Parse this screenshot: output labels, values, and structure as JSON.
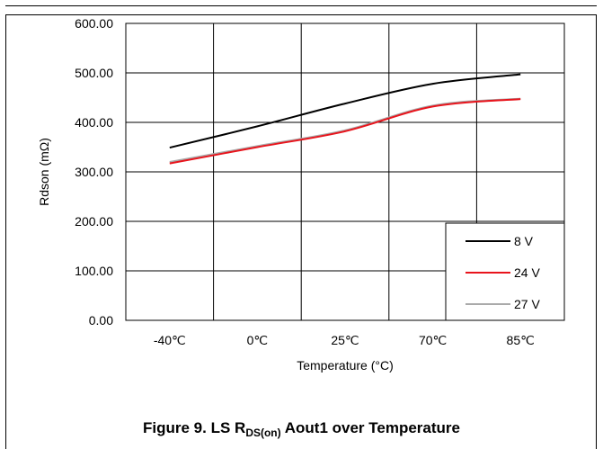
{
  "caption": {
    "prefix": "Figure 9. LS R",
    "subscript": "DS(on)",
    "suffix": " Aout1 over Temperature"
  },
  "chart_data": {
    "type": "line",
    "title": "",
    "xlabel": "Temperature (°C)",
    "ylabel": "Rdson (mΩ)",
    "categories": [
      "-40℃",
      "0℃",
      "25℃",
      "70℃",
      "85℃"
    ],
    "ylim": [
      0,
      600
    ],
    "yticks": [
      "0.00",
      "100.00",
      "200.00",
      "300.00",
      "400.00",
      "500.00",
      "600.00"
    ],
    "grid": true,
    "legend_position": "bottom-right",
    "series": [
      {
        "name": "8 V",
        "color": "#000000",
        "values": [
          349,
          392,
          438,
          478,
          497
        ]
      },
      {
        "name": "24 V",
        "color": "#e8141c",
        "values": [
          317,
          350,
          382,
          432,
          447
        ]
      },
      {
        "name": "27 V",
        "color": "#aaaaaa",
        "values": [
          320,
          352,
          384,
          434,
          448
        ]
      }
    ]
  }
}
